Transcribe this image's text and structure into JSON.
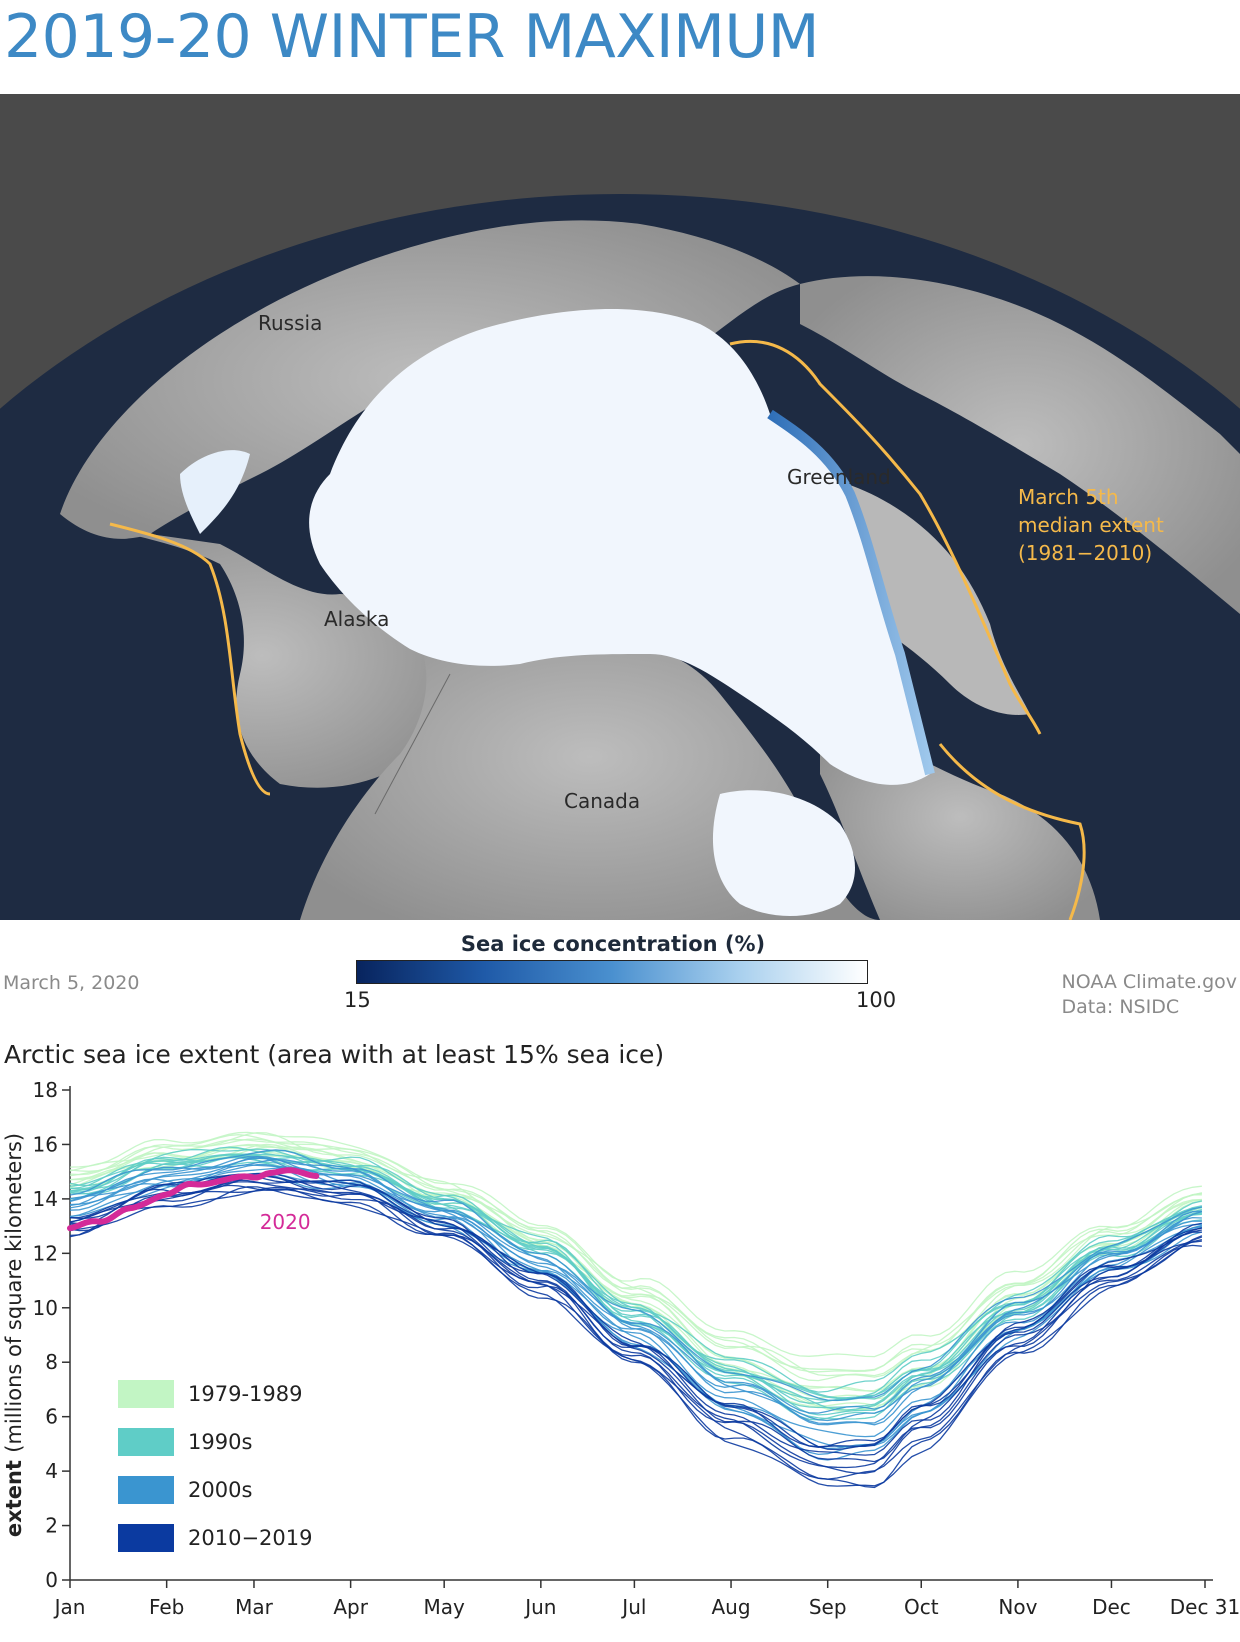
{
  "title": "2019-20 WINTER MAXIMUM",
  "map": {
    "labels": {
      "russia": "Russia",
      "alaska": "Alaska",
      "greenland": "Greenland",
      "canada": "Canada"
    },
    "median_label": [
      "March 5th",
      "median extent",
      "(1981−2010)"
    ],
    "colors": {
      "background": "#4a4a4a",
      "ocean": "#1e2b42",
      "land": "#a8a8a8",
      "ice": "#f1f6fd",
      "median_line": "#f5b94a"
    }
  },
  "colorbar": {
    "title": "Sea ice concentration (%)",
    "min_label": "15",
    "max_label": "100"
  },
  "date": "March 5, 2020",
  "credit": {
    "line1": "NOAA Climate.gov",
    "line2": "Data: NSIDC"
  },
  "chart_title": "Arctic sea ice extent (area with at least 15% sea ice)",
  "chart_data": {
    "type": "line",
    "title": "Arctic sea ice extent (area with at least 15% sea ice)",
    "xlabel": "",
    "ylabel": "extent (millions of square kilometers)",
    "ylim": [
      0,
      18
    ],
    "y_ticks": [
      "0",
      "2",
      "4",
      "6",
      "8",
      "10",
      "12",
      "14",
      "16",
      "18"
    ],
    "x_ticks": [
      "Jan",
      "Feb",
      "Mar",
      "Apr",
      "May",
      "Jun",
      "Jul",
      "Aug",
      "Sep",
      "Oct",
      "Nov",
      "Dec",
      "Dec 31"
    ],
    "x_tick_days": [
      1,
      32,
      60,
      91,
      121,
      152,
      182,
      213,
      244,
      274,
      305,
      335,
      365
    ],
    "grid": false,
    "legend_position": "bottom-left",
    "reference_days": [
      1,
      32,
      60,
      91,
      121,
      152,
      182,
      213,
      244,
      258,
      274,
      305,
      335,
      365
    ],
    "groups": [
      {
        "name": "1979-1989",
        "color": "#c2f5c4",
        "years": 11,
        "typical": [
          14.8,
          15.6,
          16.1,
          15.5,
          14.3,
          12.6,
          10.5,
          8.3,
          7.1,
          7.1,
          8.0,
          10.5,
          12.6,
          14.0
        ],
        "spread": 0.45
      },
      {
        "name": "1990s",
        "color": "#5fcdc7",
        "years": 10,
        "typical": [
          14.3,
          15.3,
          15.6,
          15.1,
          13.9,
          12.2,
          9.8,
          7.6,
          6.4,
          6.5,
          7.6,
          10.0,
          12.2,
          13.6
        ],
        "spread": 0.45
      },
      {
        "name": "2000s",
        "color": "#3a95d0",
        "years": 10,
        "typical": [
          13.8,
          14.8,
          15.3,
          14.8,
          13.4,
          11.6,
          9.2,
          6.9,
          5.5,
          5.6,
          6.9,
          9.6,
          11.8,
          13.2
        ],
        "spread": 0.5
      },
      {
        "name": "2010−2019",
        "color": "#0b3aa0",
        "years": 10,
        "typical": [
          13.1,
          14.2,
          14.7,
          14.3,
          13.0,
          11.0,
          8.5,
          6.0,
          4.5,
          4.5,
          5.9,
          9.0,
          11.3,
          12.8
        ],
        "spread": 0.55
      }
    ],
    "series_2020": {
      "name": "2020",
      "color": "#d42a98",
      "days": [
        1,
        10,
        20,
        32,
        40,
        50,
        60,
        65,
        70,
        80
      ],
      "values": [
        12.9,
        13.2,
        13.6,
        14.2,
        14.5,
        14.7,
        14.8,
        15.0,
        15.0,
        14.9
      ]
    }
  }
}
